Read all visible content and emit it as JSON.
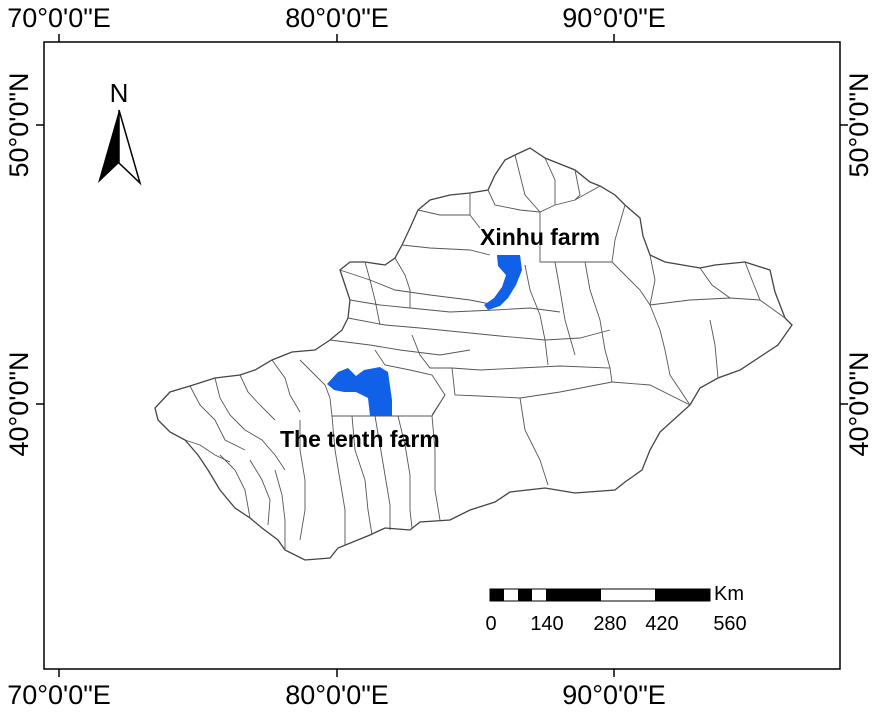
{
  "map": {
    "top_axis_labels": [
      "70°0'0\"E",
      "80°0'0\"E",
      "90°0'0\"E"
    ],
    "bottom_axis_labels": [
      "70°0'0\"E",
      "80°0'0\"E",
      "90°0'0\"E"
    ],
    "left_axis_labels": [
      "50°0'0\"N",
      "40°0'0\"N"
    ],
    "right_axis_labels": [
      "50°0'0\"N",
      "40°0'0\"N"
    ],
    "north_arrow": {
      "label": "N",
      "icon": "north-arrow-icon"
    },
    "places": [
      {
        "id": "xinhu",
        "label": "Xinhu farm",
        "color": "#1060e8"
      },
      {
        "id": "tenth",
        "label": "The tenth farm",
        "color": "#1060e8"
      }
    ],
    "scale_bar": {
      "unit": "Km",
      "tick_labels": [
        "0",
        "140",
        "280",
        "420",
        "560"
      ]
    },
    "colors": {
      "frame": "#000000",
      "boundary": "#555555",
      "farm": "#1060e8"
    }
  }
}
